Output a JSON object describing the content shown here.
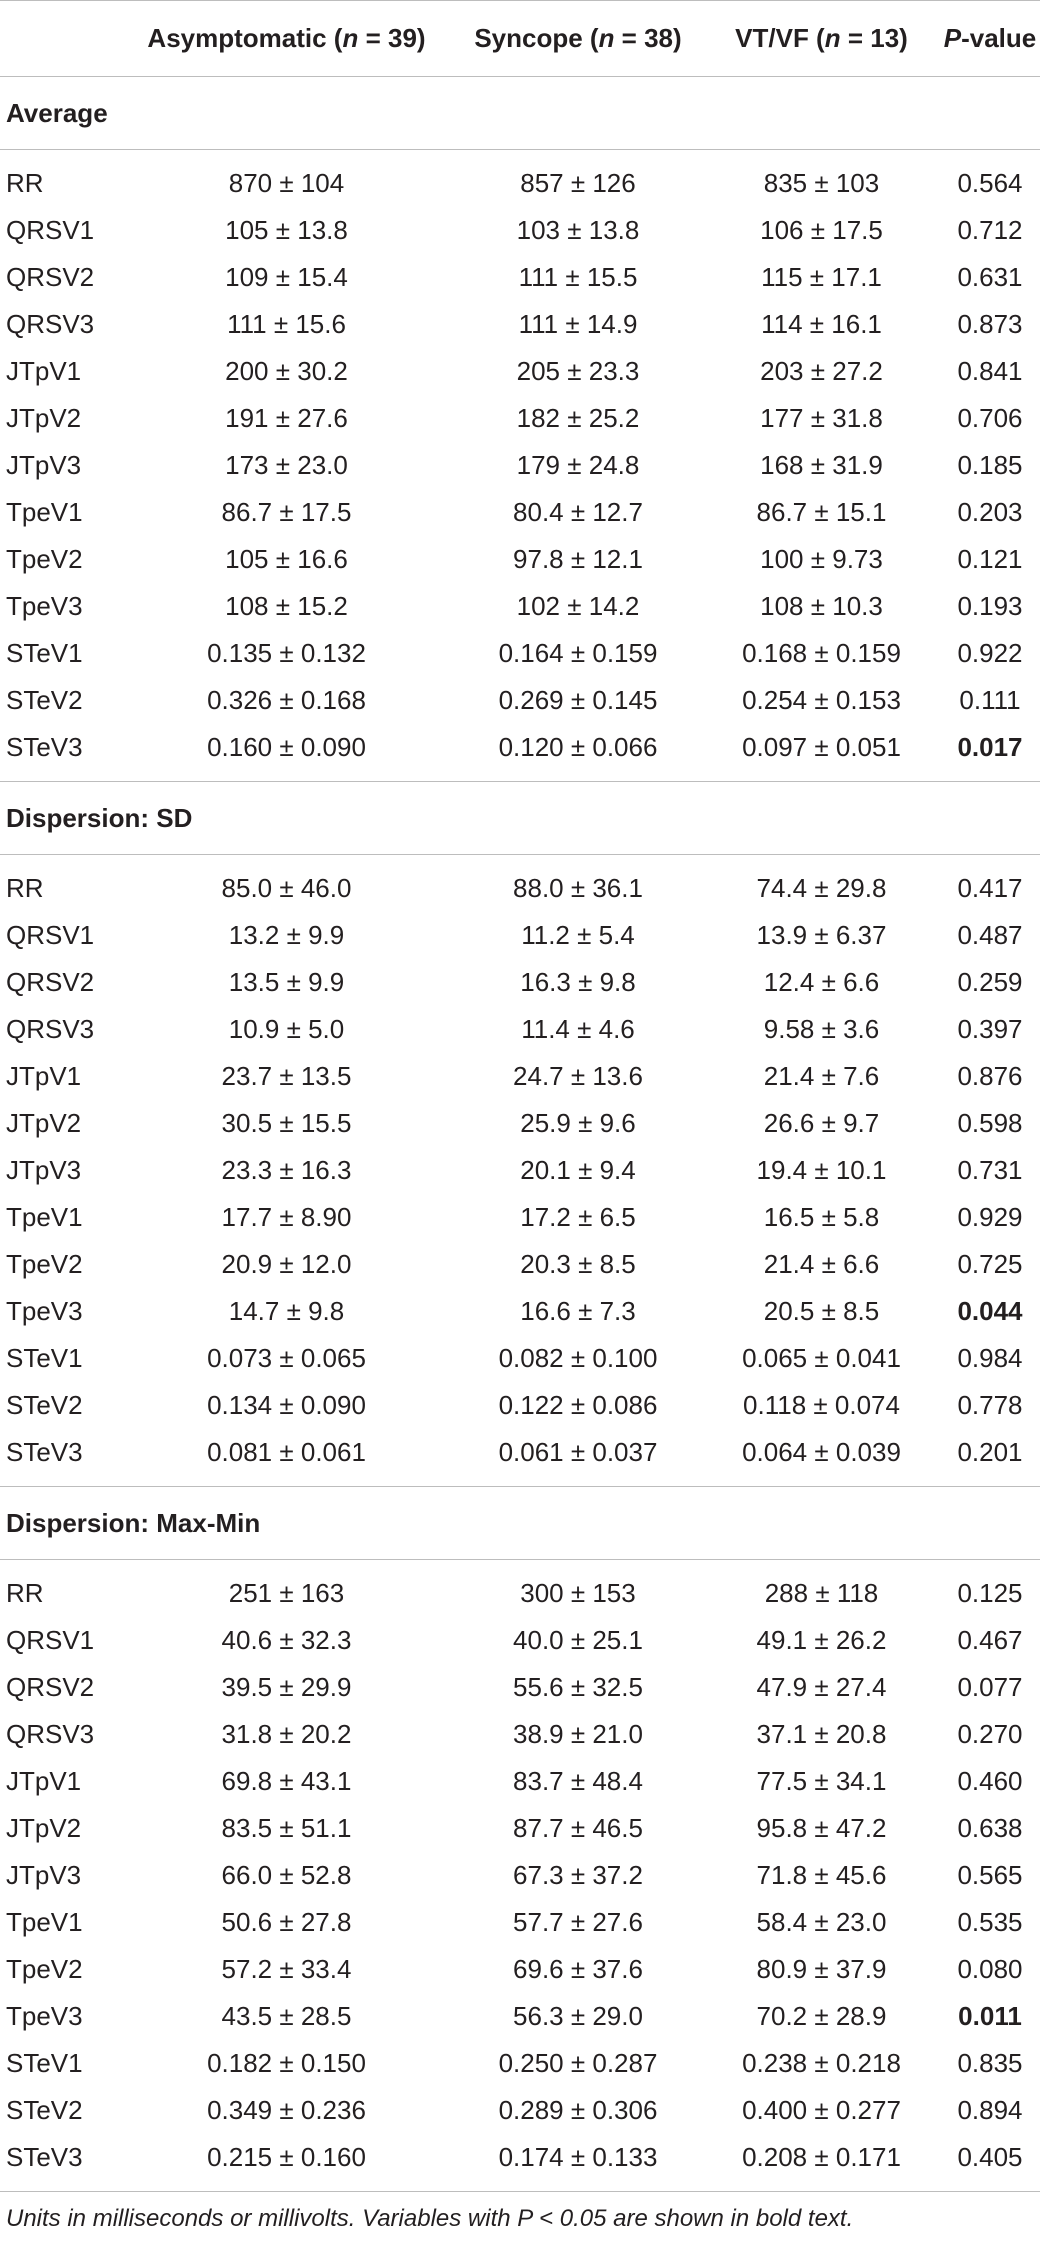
{
  "header": {
    "col1": "Asymptomatic (",
    "col1_n": "n",
    "col1_rest": " = 39)",
    "col2": "Syncope (",
    "col2_n": "n",
    "col2_rest": " = 38)",
    "col3": "VT/VF (",
    "col3_n": "n",
    "col3_rest": " = 13)",
    "col4_p": "P",
    "col4_rest": "-value"
  },
  "sections": [
    {
      "title": "Average",
      "rows": [
        {
          "label": "RR",
          "a": "870 ± 104",
          "s": "857 ± 126",
          "v": "835 ± 103",
          "p": "0.564",
          "bold": false
        },
        {
          "label": "QRSV1",
          "a": "105 ± 13.8",
          "s": "103 ± 13.8",
          "v": "106 ± 17.5",
          "p": "0.712",
          "bold": false
        },
        {
          "label": "QRSV2",
          "a": "109 ± 15.4",
          "s": "111 ± 15.5",
          "v": "115 ± 17.1",
          "p": "0.631",
          "bold": false
        },
        {
          "label": "QRSV3",
          "a": "111 ± 15.6",
          "s": "111 ± 14.9",
          "v": "114 ± 16.1",
          "p": "0.873",
          "bold": false
        },
        {
          "label": "JTpV1",
          "a": "200 ± 30.2",
          "s": "205 ± 23.3",
          "v": "203 ± 27.2",
          "p": "0.841",
          "bold": false
        },
        {
          "label": "JTpV2",
          "a": "191 ± 27.6",
          "s": "182 ± 25.2",
          "v": "177 ± 31.8",
          "p": "0.706",
          "bold": false
        },
        {
          "label": "JTpV3",
          "a": "173 ± 23.0",
          "s": "179 ± 24.8",
          "v": "168 ± 31.9",
          "p": "0.185",
          "bold": false
        },
        {
          "label": "TpeV1",
          "a": "86.7 ± 17.5",
          "s": "80.4 ± 12.7",
          "v": "86.7 ± 15.1",
          "p": "0.203",
          "bold": false
        },
        {
          "label": "TpeV2",
          "a": "105 ± 16.6",
          "s": "97.8 ± 12.1",
          "v": "100 ± 9.73",
          "p": "0.121",
          "bold": false
        },
        {
          "label": "TpeV3",
          "a": "108 ± 15.2",
          "s": "102 ± 14.2",
          "v": "108 ± 10.3",
          "p": "0.193",
          "bold": false
        },
        {
          "label": "STeV1",
          "a": "0.135 ± 0.132",
          "s": "0.164 ± 0.159",
          "v": "0.168 ± 0.159",
          "p": "0.922",
          "bold": false
        },
        {
          "label": "STeV2",
          "a": "0.326 ± 0.168",
          "s": "0.269 ± 0.145",
          "v": "0.254 ± 0.153",
          "p": "0.111",
          "bold": false
        },
        {
          "label": "STeV3",
          "a": "0.160 ± 0.090",
          "s": "0.120 ± 0.066",
          "v": "0.097 ± 0.051",
          "p": "0.017",
          "bold": true
        }
      ]
    },
    {
      "title": "Dispersion: SD",
      "rows": [
        {
          "label": "RR",
          "a": "85.0 ± 46.0",
          "s": "88.0 ± 36.1",
          "v": "74.4 ± 29.8",
          "p": "0.417",
          "bold": false
        },
        {
          "label": "QRSV1",
          "a": "13.2 ± 9.9",
          "s": "11.2 ± 5.4",
          "v": "13.9 ± 6.37",
          "p": "0.487",
          "bold": false
        },
        {
          "label": "QRSV2",
          "a": "13.5 ± 9.9",
          "s": "16.3 ± 9.8",
          "v": "12.4 ± 6.6",
          "p": "0.259",
          "bold": false
        },
        {
          "label": "QRSV3",
          "a": "10.9 ± 5.0",
          "s": "11.4 ± 4.6",
          "v": "9.58 ± 3.6",
          "p": "0.397",
          "bold": false
        },
        {
          "label": "JTpV1",
          "a": "23.7 ± 13.5",
          "s": "24.7 ± 13.6",
          "v": "21.4 ± 7.6",
          "p": "0.876",
          "bold": false
        },
        {
          "label": "JTpV2",
          "a": "30.5 ± 15.5",
          "s": "25.9 ± 9.6",
          "v": "26.6 ± 9.7",
          "p": "0.598",
          "bold": false
        },
        {
          "label": "JTpV3",
          "a": "23.3 ± 16.3",
          "s": "20.1 ± 9.4",
          "v": "19.4 ± 10.1",
          "p": "0.731",
          "bold": false
        },
        {
          "label": "TpeV1",
          "a": "17.7 ± 8.90",
          "s": "17.2 ± 6.5",
          "v": "16.5 ± 5.8",
          "p": "0.929",
          "bold": false
        },
        {
          "label": "TpeV2",
          "a": "20.9 ± 12.0",
          "s": "20.3 ± 8.5",
          "v": "21.4 ± 6.6",
          "p": "0.725",
          "bold": false
        },
        {
          "label": "TpeV3",
          "a": "14.7 ± 9.8",
          "s": "16.6 ± 7.3",
          "v": "20.5 ± 8.5",
          "p": "0.044",
          "bold": true
        },
        {
          "label": "STeV1",
          "a": "0.073 ± 0.065",
          "s": "0.082 ± 0.100",
          "v": "0.065 ± 0.041",
          "p": "0.984",
          "bold": false
        },
        {
          "label": "STeV2",
          "a": "0.134 ± 0.090",
          "s": "0.122 ± 0.086",
          "v": "0.118 ± 0.074",
          "p": "0.778",
          "bold": false
        },
        {
          "label": "STeV3",
          "a": "0.081 ± 0.061",
          "s": "0.061 ± 0.037",
          "v": "0.064 ± 0.039",
          "p": "0.201",
          "bold": false
        }
      ]
    },
    {
      "title": "Dispersion: Max-Min",
      "rows": [
        {
          "label": "RR",
          "a": "251 ± 163",
          "s": "300 ± 153",
          "v": "288 ± 118",
          "p": "0.125",
          "bold": false
        },
        {
          "label": "QRSV1",
          "a": "40.6 ± 32.3",
          "s": "40.0 ± 25.1",
          "v": "49.1 ± 26.2",
          "p": "0.467",
          "bold": false
        },
        {
          "label": "QRSV2",
          "a": "39.5 ± 29.9",
          "s": "55.6 ± 32.5",
          "v": "47.9 ± 27.4",
          "p": "0.077",
          "bold": false
        },
        {
          "label": "QRSV3",
          "a": "31.8 ± 20.2",
          "s": "38.9 ± 21.0",
          "v": "37.1 ± 20.8",
          "p": "0.270",
          "bold": false
        },
        {
          "label": "JTpV1",
          "a": "69.8 ± 43.1",
          "s": "83.7 ± 48.4",
          "v": "77.5 ± 34.1",
          "p": "0.460",
          "bold": false
        },
        {
          "label": "JTpV2",
          "a": "83.5 ± 51.1",
          "s": "87.7 ± 46.5",
          "v": "95.8 ± 47.2",
          "p": "0.638",
          "bold": false
        },
        {
          "label": "JTpV3",
          "a": "66.0 ± 52.8",
          "s": "67.3 ± 37.2",
          "v": "71.8 ± 45.6",
          "p": "0.565",
          "bold": false
        },
        {
          "label": "TpeV1",
          "a": "50.6 ± 27.8",
          "s": "57.7 ± 27.6",
          "v": "58.4 ± 23.0",
          "p": "0.535",
          "bold": false
        },
        {
          "label": "TpeV2",
          "a": "57.2 ± 33.4",
          "s": "69.6 ± 37.6",
          "v": "80.9 ± 37.9",
          "p": "0.080",
          "bold": false
        },
        {
          "label": "TpeV3",
          "a": "43.5 ± 28.5",
          "s": "56.3 ± 29.0",
          "v": "70.2 ± 28.9",
          "p": "0.011",
          "bold": true
        },
        {
          "label": "STeV1",
          "a": "0.182 ± 0.150",
          "s": "0.250 ± 0.287",
          "v": "0.238 ± 0.218",
          "p": "0.835",
          "bold": false
        },
        {
          "label": "STeV2",
          "a": "0.349 ± 0.236",
          "s": "0.289 ± 0.306",
          "v": "0.400 ± 0.277",
          "p": "0.894",
          "bold": false
        },
        {
          "label": "STeV3",
          "a": "0.215 ± 0.160",
          "s": "0.174 ± 0.133",
          "v": "0.208 ± 0.171",
          "p": "0.405",
          "bold": false
        }
      ]
    }
  ],
  "footnote": "Units in milliseconds or millivolts. Variables with P < 0.05 are shown in bold text."
}
